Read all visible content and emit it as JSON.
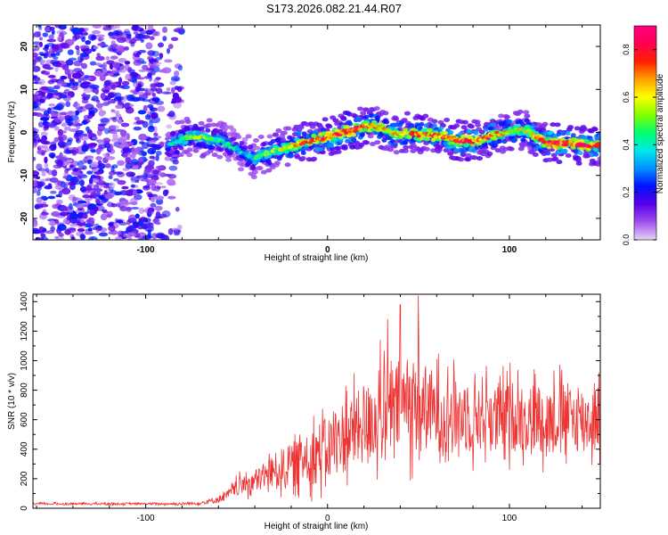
{
  "title": "S173.2026.082.21.44.R07",
  "chart_data": [
    {
      "type": "heatmap",
      "title": "",
      "xlabel": "Height of straight line (km)",
      "ylabel": "Frequency (Hz)",
      "xlim": [
        -162,
        150
      ],
      "ylim": [
        -25,
        25
      ],
      "xticks": [
        -100,
        0,
        100
      ],
      "xtick_labels": [
        "-100",
        "0",
        "100"
      ],
      "yticks": [
        -20,
        -10,
        0,
        10,
        20
      ],
      "ytick_labels": [
        "-20",
        "-10",
        "0",
        "10",
        "20"
      ],
      "colorbar": {
        "label": "Normalized spectral amplitude",
        "range": [
          0.0,
          0.9
        ],
        "ticks": [
          0.0,
          0.2,
          0.4,
          0.6,
          0.8
        ],
        "tick_labels": [
          "0.0",
          "0.2",
          "0.4",
          "0.6",
          "0.8"
        ],
        "colors": [
          "#e4d6f4",
          "#a050f0",
          "#5a00e8",
          "#0010ff",
          "#0090ff",
          "#00e8e8",
          "#00ff70",
          "#80ff00",
          "#ffff00",
          "#ffa000",
          "#ff2000",
          "#ff0050",
          "#ff0080"
        ]
      },
      "noise_region": {
        "x_range": [
          -162,
          -80
        ],
        "typical_amplitude": 0.15
      },
      "ridge": {
        "x": [
          -88,
          -82,
          -76,
          -70,
          -64,
          -58,
          -52,
          -46,
          -40,
          -34,
          -28,
          -22,
          -16,
          -10,
          -4,
          2,
          8,
          14,
          20,
          26,
          32,
          38,
          44,
          50,
          56,
          62,
          68,
          74,
          80,
          86,
          92,
          98,
          104,
          110,
          116,
          122,
          128,
          134,
          140,
          146,
          150
        ],
        "freq": [
          -3,
          -2,
          -1,
          -1,
          -1.5,
          -2,
          -3.5,
          -5,
          -6,
          -5,
          -4,
          -3.5,
          -2.5,
          -2,
          -1.5,
          -1,
          0,
          0.5,
          1.5,
          1.5,
          0.5,
          -0.5,
          0,
          -0.5,
          -0.5,
          -1,
          -1.5,
          -2,
          -2,
          -1.5,
          -0.5,
          0,
          0.5,
          0.5,
          -1.5,
          -2.5,
          -2.5,
          -2.5,
          -3,
          -3,
          -3
        ],
        "amplitude": [
          0.35,
          0.45,
          0.5,
          0.55,
          0.5,
          0.45,
          0.4,
          0.35,
          0.45,
          0.5,
          0.55,
          0.6,
          0.7,
          0.75,
          0.8,
          0.8,
          0.85,
          0.85,
          0.75,
          0.7,
          0.65,
          0.65,
          0.7,
          0.75,
          0.7,
          0.75,
          0.8,
          0.8,
          0.8,
          0.75,
          0.7,
          0.65,
          0.6,
          0.6,
          0.75,
          0.85,
          0.85,
          0.8,
          0.8,
          0.75,
          0.7
        ]
      }
    },
    {
      "type": "line",
      "title": "",
      "xlabel": "Height of straight line (km)",
      "ylabel": "SNR (10 * v/v)",
      "xlim": [
        -162,
        150
      ],
      "ylim": [
        0,
        1450
      ],
      "xticks": [
        -100,
        0,
        100
      ],
      "xtick_labels": [
        "-100",
        "0",
        "100"
      ],
      "yticks": [
        0,
        200,
        400,
        600,
        800,
        1000,
        1200,
        1400
      ],
      "ytick_labels": [
        "0",
        "200",
        "400",
        "600",
        "800",
        "1000",
        "1200",
        "1400"
      ],
      "color": "#ee3333",
      "envelope": {
        "x": [
          -162,
          -140,
          -120,
          -100,
          -90,
          -80,
          -70,
          -60,
          -55,
          -50,
          -45,
          -40,
          -35,
          -30,
          -25,
          -20,
          -15,
          -10,
          -5,
          0,
          5,
          10,
          15,
          20,
          25,
          30,
          35,
          40,
          45,
          50,
          55,
          60,
          65,
          70,
          75,
          80,
          85,
          90,
          95,
          100,
          105,
          110,
          115,
          120,
          125,
          130,
          135,
          140,
          145,
          150
        ],
        "mean": [
          30,
          30,
          30,
          30,
          30,
          30,
          35,
          60,
          90,
          140,
          170,
          180,
          220,
          250,
          270,
          290,
          330,
          350,
          380,
          400,
          450,
          500,
          520,
          560,
          600,
          610,
          650,
          700,
          720,
          700,
          680,
          650,
          640,
          620,
          640,
          600,
          650,
          620,
          600,
          620,
          630,
          600,
          620,
          600,
          610,
          630,
          600,
          610,
          600,
          620
        ],
        "spread": [
          10,
          10,
          10,
          10,
          10,
          12,
          15,
          30,
          40,
          70,
          90,
          100,
          120,
          140,
          170,
          180,
          220,
          240,
          260,
          270,
          290,
          320,
          320,
          330,
          350,
          360,
          380,
          400,
          420,
          400,
          360,
          330,
          320,
          300,
          320,
          300,
          320,
          300,
          280,
          300,
          300,
          300,
          300,
          280,
          290,
          300,
          280,
          280,
          280,
          280
        ]
      },
      "peaks": [
        {
          "x": 50,
          "y": 1440
        },
        {
          "x": 40,
          "y": 1380
        },
        {
          "x": 33,
          "y": 1280
        },
        {
          "x": 29,
          "y": 1140
        }
      ]
    }
  ]
}
